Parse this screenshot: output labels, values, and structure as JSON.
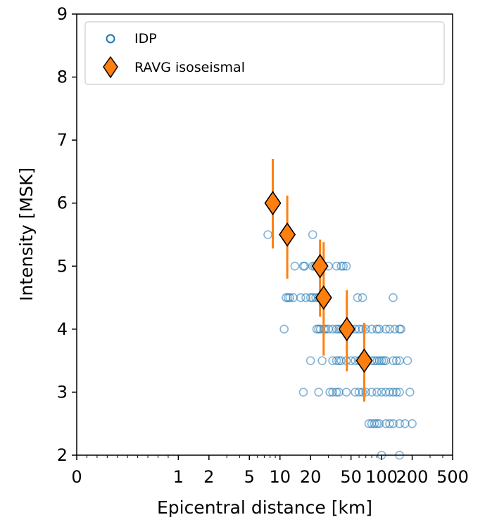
{
  "chart_data": {
    "type": "scatter",
    "xlabel": "Epicentral distance [km]",
    "ylabel": "Intensity [MSK]",
    "xscale": "symlog",
    "xlim": [
      0,
      500
    ],
    "ylim": [
      2,
      9
    ],
    "x_ticks": [
      0,
      1,
      2,
      5,
      10,
      20,
      50,
      100,
      200,
      500
    ],
    "x_tick_labels": [
      "0",
      "1",
      "2",
      "5",
      "10",
      "20",
      "50",
      "100",
      "200",
      "500"
    ],
    "y_ticks": [
      2,
      3,
      4,
      5,
      6,
      7,
      8,
      9
    ],
    "y_tick_labels": [
      "2",
      "3",
      "4",
      "5",
      "6",
      "7",
      "8",
      "9"
    ],
    "grid": false,
    "legend_position": "top",
    "series": [
      {
        "name": "IDP",
        "marker": "open-circle",
        "color": "#1f77b4",
        "points": [
          [
            7.6,
            5.5
          ],
          [
            11,
            4
          ],
          [
            11.5,
            4.5
          ],
          [
            12,
            4.5
          ],
          [
            12.5,
            4.5
          ],
          [
            13.5,
            4.5
          ],
          [
            16,
            4.5
          ],
          [
            18,
            4.5
          ],
          [
            14,
            5
          ],
          [
            17,
            5
          ],
          [
            17.5,
            5
          ],
          [
            20,
            4.5
          ],
          [
            21,
            4.5
          ],
          [
            22.5,
            4.5
          ],
          [
            24,
            4.5
          ],
          [
            26,
            4.5
          ],
          [
            21,
            5
          ],
          [
            22,
            5
          ],
          [
            24,
            5
          ],
          [
            26,
            5
          ],
          [
            30,
            5
          ],
          [
            36,
            5
          ],
          [
            40,
            5
          ],
          [
            42,
            5
          ],
          [
            45,
            5
          ],
          [
            21,
            5.5
          ],
          [
            23,
            4
          ],
          [
            24,
            4
          ],
          [
            25,
            4
          ],
          [
            27,
            4
          ],
          [
            28,
            4
          ],
          [
            30,
            4
          ],
          [
            33,
            4
          ],
          [
            36,
            4
          ],
          [
            38,
            4
          ],
          [
            40,
            4
          ],
          [
            42,
            4
          ],
          [
            45,
            4
          ],
          [
            50,
            4
          ],
          [
            55,
            4
          ],
          [
            60,
            4
          ],
          [
            65,
            4
          ],
          [
            70,
            4
          ],
          [
            80,
            4
          ],
          [
            90,
            4
          ],
          [
            95,
            4
          ],
          [
            110,
            4
          ],
          [
            120,
            4
          ],
          [
            135,
            4
          ],
          [
            150,
            4
          ],
          [
            155,
            4
          ],
          [
            58,
            4.5
          ],
          [
            65,
            4.5
          ],
          [
            130,
            4.5
          ],
          [
            20,
            3.5
          ],
          [
            26,
            3.5
          ],
          [
            33,
            3.5
          ],
          [
            36,
            3.5
          ],
          [
            38,
            3.5
          ],
          [
            40,
            3.5
          ],
          [
            45,
            3.5
          ],
          [
            50,
            3.5
          ],
          [
            55,
            3.5
          ],
          [
            60,
            3.5
          ],
          [
            70,
            3.5
          ],
          [
            80,
            3.5
          ],
          [
            85,
            3.5
          ],
          [
            90,
            3.5
          ],
          [
            95,
            3.5
          ],
          [
            100,
            3.5
          ],
          [
            105,
            3.5
          ],
          [
            110,
            3.5
          ],
          [
            130,
            3.5
          ],
          [
            140,
            3.5
          ],
          [
            150,
            3.5
          ],
          [
            180,
            3.5
          ],
          [
            17,
            3
          ],
          [
            24,
            3
          ],
          [
            31,
            3
          ],
          [
            33,
            3
          ],
          [
            36,
            3
          ],
          [
            38,
            3
          ],
          [
            45,
            3
          ],
          [
            55,
            3
          ],
          [
            60,
            3
          ],
          [
            65,
            3
          ],
          [
            70,
            3
          ],
          [
            80,
            3
          ],
          [
            90,
            3
          ],
          [
            100,
            3
          ],
          [
            110,
            3
          ],
          [
            120,
            3
          ],
          [
            130,
            3
          ],
          [
            140,
            3
          ],
          [
            150,
            3
          ],
          [
            190,
            3
          ],
          [
            75,
            2.5
          ],
          [
            80,
            2.5
          ],
          [
            85,
            2.5
          ],
          [
            90,
            2.5
          ],
          [
            95,
            2.5
          ],
          [
            110,
            2.5
          ],
          [
            120,
            2.5
          ],
          [
            130,
            2.5
          ],
          [
            150,
            2.5
          ],
          [
            170,
            2.5
          ],
          [
            200,
            2.5
          ],
          [
            100,
            2
          ],
          [
            150,
            2
          ]
        ]
      },
      {
        "name": "RAVG isoseismal",
        "marker": "diamond",
        "color": "#ff7f0e",
        "points": [
          {
            "x": 8.5,
            "y": 6.0,
            "ylow": 5.28,
            "yhigh": 6.7
          },
          {
            "x": 11.8,
            "y": 5.5,
            "ylow": 4.8,
            "yhigh": 6.12
          },
          {
            "x": 24.8,
            "y": 5.0,
            "ylow": 4.2,
            "yhigh": 5.42
          },
          {
            "x": 26.9,
            "y": 4.5,
            "ylow": 3.58,
            "yhigh": 5.38
          },
          {
            "x": 45.5,
            "y": 4.0,
            "ylow": 3.33,
            "yhigh": 4.62
          },
          {
            "x": 67.5,
            "y": 3.5,
            "ylow": 2.85,
            "yhigh": 4.1
          }
        ]
      }
    ]
  }
}
